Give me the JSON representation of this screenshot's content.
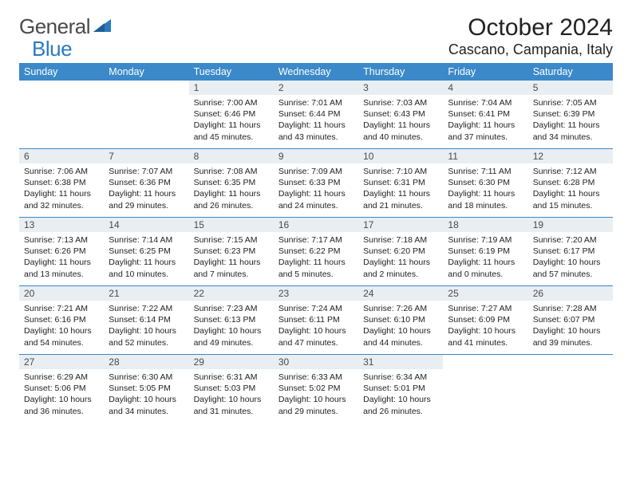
{
  "brand": {
    "part1": "General",
    "part2": "Blue"
  },
  "title": "October 2024",
  "location": "Cascano, Campania, Italy",
  "colors": {
    "header_bg": "#3b89c9",
    "header_fg": "#ffffff",
    "daynum_bg": "#e9eef2",
    "rule": "#3b89c9",
    "logo_blue": "#2b7bbf",
    "text": "#222222"
  },
  "weekdays": [
    "Sunday",
    "Monday",
    "Tuesday",
    "Wednesday",
    "Thursday",
    "Friday",
    "Saturday"
  ],
  "grid": [
    [
      null,
      null,
      {
        "n": "1",
        "sr": "Sunrise: 7:00 AM",
        "ss": "Sunset: 6:46 PM",
        "d1": "Daylight: 11 hours",
        "d2": "and 45 minutes."
      },
      {
        "n": "2",
        "sr": "Sunrise: 7:01 AM",
        "ss": "Sunset: 6:44 PM",
        "d1": "Daylight: 11 hours",
        "d2": "and 43 minutes."
      },
      {
        "n": "3",
        "sr": "Sunrise: 7:03 AM",
        "ss": "Sunset: 6:43 PM",
        "d1": "Daylight: 11 hours",
        "d2": "and 40 minutes."
      },
      {
        "n": "4",
        "sr": "Sunrise: 7:04 AM",
        "ss": "Sunset: 6:41 PM",
        "d1": "Daylight: 11 hours",
        "d2": "and 37 minutes."
      },
      {
        "n": "5",
        "sr": "Sunrise: 7:05 AM",
        "ss": "Sunset: 6:39 PM",
        "d1": "Daylight: 11 hours",
        "d2": "and 34 minutes."
      }
    ],
    [
      {
        "n": "6",
        "sr": "Sunrise: 7:06 AM",
        "ss": "Sunset: 6:38 PM",
        "d1": "Daylight: 11 hours",
        "d2": "and 32 minutes."
      },
      {
        "n": "7",
        "sr": "Sunrise: 7:07 AM",
        "ss": "Sunset: 6:36 PM",
        "d1": "Daylight: 11 hours",
        "d2": "and 29 minutes."
      },
      {
        "n": "8",
        "sr": "Sunrise: 7:08 AM",
        "ss": "Sunset: 6:35 PM",
        "d1": "Daylight: 11 hours",
        "d2": "and 26 minutes."
      },
      {
        "n": "9",
        "sr": "Sunrise: 7:09 AM",
        "ss": "Sunset: 6:33 PM",
        "d1": "Daylight: 11 hours",
        "d2": "and 24 minutes."
      },
      {
        "n": "10",
        "sr": "Sunrise: 7:10 AM",
        "ss": "Sunset: 6:31 PM",
        "d1": "Daylight: 11 hours",
        "d2": "and 21 minutes."
      },
      {
        "n": "11",
        "sr": "Sunrise: 7:11 AM",
        "ss": "Sunset: 6:30 PM",
        "d1": "Daylight: 11 hours",
        "d2": "and 18 minutes."
      },
      {
        "n": "12",
        "sr": "Sunrise: 7:12 AM",
        "ss": "Sunset: 6:28 PM",
        "d1": "Daylight: 11 hours",
        "d2": "and 15 minutes."
      }
    ],
    [
      {
        "n": "13",
        "sr": "Sunrise: 7:13 AM",
        "ss": "Sunset: 6:26 PM",
        "d1": "Daylight: 11 hours",
        "d2": "and 13 minutes."
      },
      {
        "n": "14",
        "sr": "Sunrise: 7:14 AM",
        "ss": "Sunset: 6:25 PM",
        "d1": "Daylight: 11 hours",
        "d2": "and 10 minutes."
      },
      {
        "n": "15",
        "sr": "Sunrise: 7:15 AM",
        "ss": "Sunset: 6:23 PM",
        "d1": "Daylight: 11 hours",
        "d2": "and 7 minutes."
      },
      {
        "n": "16",
        "sr": "Sunrise: 7:17 AM",
        "ss": "Sunset: 6:22 PM",
        "d1": "Daylight: 11 hours",
        "d2": "and 5 minutes."
      },
      {
        "n": "17",
        "sr": "Sunrise: 7:18 AM",
        "ss": "Sunset: 6:20 PM",
        "d1": "Daylight: 11 hours",
        "d2": "and 2 minutes."
      },
      {
        "n": "18",
        "sr": "Sunrise: 7:19 AM",
        "ss": "Sunset: 6:19 PM",
        "d1": "Daylight: 11 hours",
        "d2": "and 0 minutes."
      },
      {
        "n": "19",
        "sr": "Sunrise: 7:20 AM",
        "ss": "Sunset: 6:17 PM",
        "d1": "Daylight: 10 hours",
        "d2": "and 57 minutes."
      }
    ],
    [
      {
        "n": "20",
        "sr": "Sunrise: 7:21 AM",
        "ss": "Sunset: 6:16 PM",
        "d1": "Daylight: 10 hours",
        "d2": "and 54 minutes."
      },
      {
        "n": "21",
        "sr": "Sunrise: 7:22 AM",
        "ss": "Sunset: 6:14 PM",
        "d1": "Daylight: 10 hours",
        "d2": "and 52 minutes."
      },
      {
        "n": "22",
        "sr": "Sunrise: 7:23 AM",
        "ss": "Sunset: 6:13 PM",
        "d1": "Daylight: 10 hours",
        "d2": "and 49 minutes."
      },
      {
        "n": "23",
        "sr": "Sunrise: 7:24 AM",
        "ss": "Sunset: 6:11 PM",
        "d1": "Daylight: 10 hours",
        "d2": "and 47 minutes."
      },
      {
        "n": "24",
        "sr": "Sunrise: 7:26 AM",
        "ss": "Sunset: 6:10 PM",
        "d1": "Daylight: 10 hours",
        "d2": "and 44 minutes."
      },
      {
        "n": "25",
        "sr": "Sunrise: 7:27 AM",
        "ss": "Sunset: 6:09 PM",
        "d1": "Daylight: 10 hours",
        "d2": "and 41 minutes."
      },
      {
        "n": "26",
        "sr": "Sunrise: 7:28 AM",
        "ss": "Sunset: 6:07 PM",
        "d1": "Daylight: 10 hours",
        "d2": "and 39 minutes."
      }
    ],
    [
      {
        "n": "27",
        "sr": "Sunrise: 6:29 AM",
        "ss": "Sunset: 5:06 PM",
        "d1": "Daylight: 10 hours",
        "d2": "and 36 minutes."
      },
      {
        "n": "28",
        "sr": "Sunrise: 6:30 AM",
        "ss": "Sunset: 5:05 PM",
        "d1": "Daylight: 10 hours",
        "d2": "and 34 minutes."
      },
      {
        "n": "29",
        "sr": "Sunrise: 6:31 AM",
        "ss": "Sunset: 5:03 PM",
        "d1": "Daylight: 10 hours",
        "d2": "and 31 minutes."
      },
      {
        "n": "30",
        "sr": "Sunrise: 6:33 AM",
        "ss": "Sunset: 5:02 PM",
        "d1": "Daylight: 10 hours",
        "d2": "and 29 minutes."
      },
      {
        "n": "31",
        "sr": "Sunrise: 6:34 AM",
        "ss": "Sunset: 5:01 PM",
        "d1": "Daylight: 10 hours",
        "d2": "and 26 minutes."
      },
      null,
      null
    ]
  ]
}
